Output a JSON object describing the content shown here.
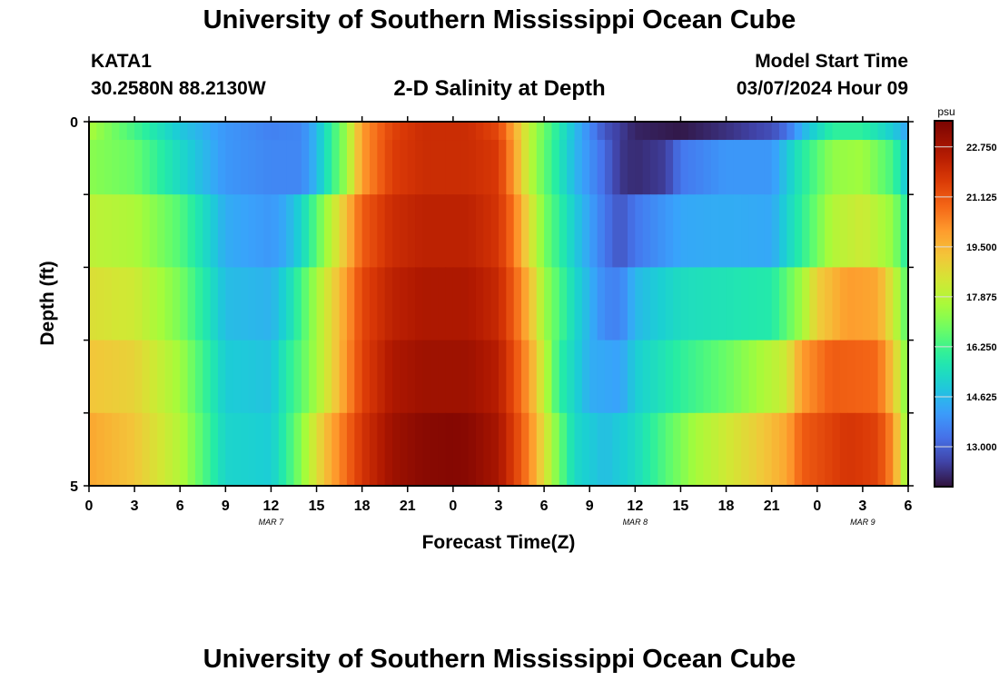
{
  "page": {
    "title": "University of Southern Mississippi Ocean Cube",
    "station_id": "KATA1",
    "coordinates": "30.2580N  88.2130W",
    "plot_title": "2-D Salinity at Depth",
    "model_start_label": "Model Start Time",
    "model_start_value": "03/07/2024 Hour 09",
    "footer_title": "University of Southern Mississippi Ocean Cube"
  },
  "chart_data": {
    "type": "heatmap",
    "title": "2-D Salinity at Depth",
    "xlabel": "Forecast Time(Z)",
    "ylabel": "Depth (ft)",
    "x_tick_labels": [
      "0",
      "3",
      "6",
      "9",
      "12",
      "15",
      "18",
      "21",
      "0",
      "3",
      "6",
      "9",
      "12",
      "15",
      "18",
      "21",
      "0",
      "3",
      "6"
    ],
    "date_labels": [
      {
        "text": "MAR 7",
        "hour": 12
      },
      {
        "text": "MAR 8",
        "hour": 36
      },
      {
        "text": "MAR 9",
        "hour": 51
      }
    ],
    "y_tick_labels": [
      "0",
      "5"
    ],
    "depth_range": [
      0,
      5
    ],
    "hour_range": [
      0,
      54
    ],
    "colorbar": {
      "unit": "psu",
      "range": [
        11.7,
        23.6
      ],
      "tick_labels": [
        "22.750",
        "21.125",
        "19.500",
        "17.875",
        "16.250",
        "14.625",
        "13.000"
      ]
    },
    "depth_layers": [
      {
        "depth_ft": 0.0,
        "keyframes": [
          [
            0,
            17.6
          ],
          [
            3,
            16.3
          ],
          [
            6,
            14.9
          ],
          [
            9,
            14.0
          ],
          [
            12,
            13.6
          ],
          [
            14,
            13.7
          ],
          [
            15,
            14.6
          ],
          [
            17,
            17.5
          ],
          [
            18,
            20.0
          ],
          [
            20,
            21.5
          ],
          [
            22,
            22.0
          ],
          [
            25,
            22.0
          ],
          [
            27,
            21.4
          ],
          [
            28,
            19.8
          ],
          [
            29,
            18.0
          ],
          [
            30,
            16.8
          ],
          [
            32,
            14.7
          ],
          [
            34,
            12.8
          ],
          [
            36,
            12.0
          ],
          [
            39,
            11.8
          ],
          [
            42,
            12.2
          ],
          [
            45,
            12.7
          ],
          [
            46,
            13.3
          ],
          [
            47,
            14.5
          ],
          [
            49,
            16.0
          ],
          [
            51,
            16.0
          ],
          [
            53,
            15.0
          ],
          [
            54,
            14.2
          ]
        ]
      },
      {
        "depth_ft": 0.5,
        "keyframes": [
          [
            0,
            17.2
          ],
          [
            3,
            16.8
          ],
          [
            6,
            15.3
          ],
          [
            9,
            14.0
          ],
          [
            12,
            13.7
          ],
          [
            14,
            13.7
          ],
          [
            15,
            14.6
          ],
          [
            17,
            17.5
          ],
          [
            18,
            20.0
          ],
          [
            20,
            21.6
          ],
          [
            22,
            22.0
          ],
          [
            25,
            22.0
          ],
          [
            27,
            21.7
          ],
          [
            28,
            20.0
          ],
          [
            29,
            18.0
          ],
          [
            30,
            16.7
          ],
          [
            32,
            14.6
          ],
          [
            34,
            13.2
          ],
          [
            35,
            12.3
          ],
          [
            36,
            12.1
          ],
          [
            38,
            12.4
          ],
          [
            39,
            13.4
          ],
          [
            42,
            14.0
          ],
          [
            45,
            14.0
          ],
          [
            47,
            15.8
          ],
          [
            49,
            17.3
          ],
          [
            51,
            17.5
          ],
          [
            53,
            16.3
          ],
          [
            54,
            14.7
          ]
        ]
      },
      {
        "depth_ft": 1.5,
        "keyframes": [
          [
            0,
            18.0
          ],
          [
            3,
            17.7
          ],
          [
            6,
            16.5
          ],
          [
            9,
            14.4
          ],
          [
            12,
            14.0
          ],
          [
            13,
            14.4
          ],
          [
            14,
            15.2
          ],
          [
            15,
            16.6
          ],
          [
            17,
            19.4
          ],
          [
            18,
            21.0
          ],
          [
            20,
            22.0
          ],
          [
            22,
            22.3
          ],
          [
            25,
            22.3
          ],
          [
            27,
            21.8
          ],
          [
            28,
            20.6
          ],
          [
            29,
            18.7
          ],
          [
            30,
            17.0
          ],
          [
            32,
            15.0
          ],
          [
            34,
            13.4
          ],
          [
            35,
            12.8
          ],
          [
            36,
            13.4
          ],
          [
            39,
            14.3
          ],
          [
            42,
            14.4
          ],
          [
            45,
            14.3
          ],
          [
            47,
            16.0
          ],
          [
            49,
            17.8
          ],
          [
            51,
            18.3
          ],
          [
            53,
            17.3
          ],
          [
            54,
            15.7
          ]
        ]
      },
      {
        "depth_ft": 2.5,
        "keyframes": [
          [
            0,
            18.6
          ],
          [
            3,
            18.3
          ],
          [
            6,
            17.0
          ],
          [
            9,
            14.7
          ],
          [
            12,
            14.5
          ],
          [
            13,
            15.2
          ],
          [
            14,
            16.3
          ],
          [
            15,
            17.6
          ],
          [
            17,
            20.0
          ],
          [
            18,
            21.4
          ],
          [
            20,
            22.3
          ],
          [
            22,
            22.6
          ],
          [
            25,
            22.6
          ],
          [
            27,
            22.1
          ],
          [
            28,
            21.0
          ],
          [
            29,
            19.5
          ],
          [
            30,
            17.5
          ],
          [
            32,
            15.3
          ],
          [
            34,
            13.7
          ],
          [
            35,
            13.6
          ],
          [
            36,
            14.6
          ],
          [
            39,
            15.4
          ],
          [
            42,
            15.6
          ],
          [
            45,
            15.8
          ],
          [
            47,
            17.5
          ],
          [
            48,
            19.0
          ],
          [
            50,
            20.0
          ],
          [
            52,
            19.8
          ],
          [
            53,
            18.3
          ],
          [
            54,
            16.4
          ]
        ]
      },
      {
        "depth_ft": 3.5,
        "keyframes": [
          [
            0,
            19.2
          ],
          [
            3,
            18.9
          ],
          [
            6,
            17.5
          ],
          [
            9,
            15.0
          ],
          [
            12,
            14.8
          ],
          [
            13,
            15.8
          ],
          [
            14,
            16.6
          ],
          [
            15,
            17.6
          ],
          [
            16,
            18.8
          ],
          [
            18,
            21.5
          ],
          [
            20,
            22.6
          ],
          [
            22,
            22.9
          ],
          [
            25,
            22.9
          ],
          [
            27,
            22.4
          ],
          [
            28,
            21.3
          ],
          [
            29,
            20.0
          ],
          [
            30,
            18.0
          ],
          [
            31,
            16.0
          ],
          [
            33,
            14.4
          ],
          [
            35,
            14.2
          ],
          [
            36,
            15.0
          ],
          [
            39,
            16.0
          ],
          [
            42,
            16.8
          ],
          [
            44,
            17.5
          ],
          [
            46,
            18.3
          ],
          [
            47,
            20.0
          ],
          [
            49,
            21.0
          ],
          [
            52,
            20.8
          ],
          [
            53,
            19.2
          ],
          [
            54,
            16.8
          ]
        ]
      },
      {
        "depth_ft": 4.5,
        "keyframes": [
          [
            0,
            19.8
          ],
          [
            3,
            19.2
          ],
          [
            6,
            17.8
          ],
          [
            9,
            15.2
          ],
          [
            12,
            15.0
          ],
          [
            13,
            16.0
          ],
          [
            14,
            17.2
          ],
          [
            15,
            18.6
          ],
          [
            16,
            19.8
          ],
          [
            18,
            21.8
          ],
          [
            20,
            22.9
          ],
          [
            22,
            23.3
          ],
          [
            24,
            23.4
          ],
          [
            25,
            23.3
          ],
          [
            27,
            22.7
          ],
          [
            28,
            21.6
          ],
          [
            29,
            20.4
          ],
          [
            30,
            18.6
          ],
          [
            31,
            16.8
          ],
          [
            32,
            15.3
          ],
          [
            34,
            14.7
          ],
          [
            36,
            15.3
          ],
          [
            38,
            16.5
          ],
          [
            40,
            17.6
          ],
          [
            42,
            18.3
          ],
          [
            44,
            19.0
          ],
          [
            46,
            19.8
          ],
          [
            47,
            21.0
          ],
          [
            50,
            21.8
          ],
          [
            52,
            21.5
          ],
          [
            53,
            20.2
          ],
          [
            54,
            17.0
          ]
        ]
      }
    ]
  }
}
